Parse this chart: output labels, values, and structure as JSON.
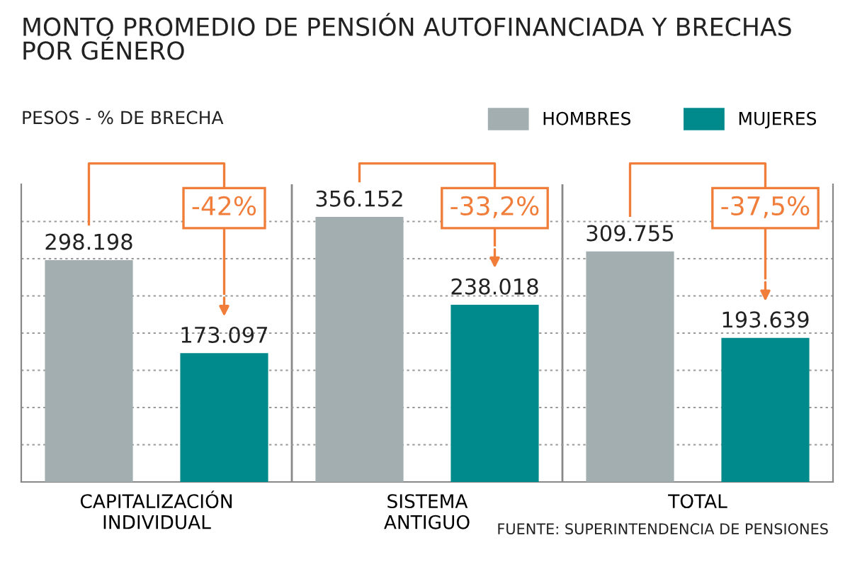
{
  "chart_data": {
    "type": "bar",
    "title": "MONTO PROMEDIO DE PENSIÓN AUTOFINANCIADA Y BRECHAS\nPOR GÉNERO",
    "subtitle": "PESOS - % DE BRECHA",
    "categories": [
      "CAPITALIZACIÓN\nINDIVIDUAL",
      "SISTEMA\nANTIGUO",
      "TOTAL"
    ],
    "series": [
      {
        "name": "HOMBRES",
        "color": "#a3aeb1",
        "values": [
          298198,
          356152,
          309755
        ],
        "value_labels": [
          "298.198",
          "356.152",
          "309.755"
        ]
      },
      {
        "name": "MUJERES",
        "color": "#008a8c",
        "values": [
          173097,
          238018,
          193639
        ],
        "value_labels": [
          "173.097",
          "238.018",
          "193.639"
        ]
      }
    ],
    "ylim": [
      0,
      400000
    ],
    "yticks": [
      {
        "value": 50000,
        "label": null
      },
      {
        "value": 100000,
        "label": null
      },
      {
        "value": 150000,
        "label": null
      },
      {
        "value": 200000,
        "label": null
      },
      {
        "value": 250000,
        "label": null
      },
      {
        "value": 300000,
        "label": null
      },
      {
        "value": 350000,
        "label": null
      }
    ],
    "grid": "y",
    "legend": "top right",
    "tick_labels": "x",
    "annotations": [
      "-42%",
      "-33,2%",
      "-37,5%",
      "FUENTE: SUPERINTENDENCIA DE PENSIONES"
    ]
  }
}
